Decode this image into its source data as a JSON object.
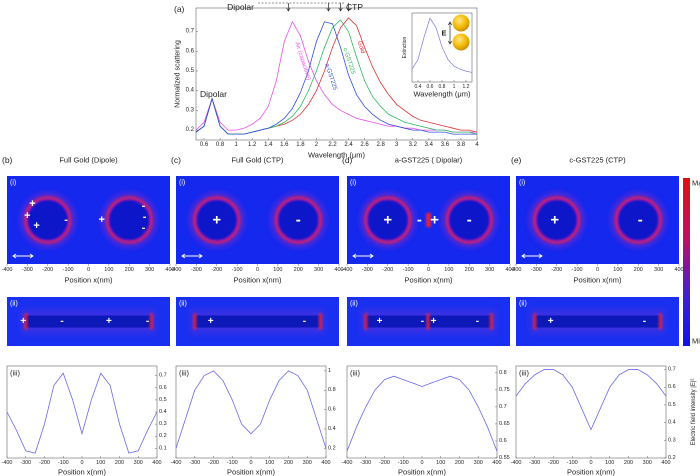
{
  "chart_data": [
    {
      "type": "line",
      "panel_label": "(a)",
      "x_label": "Wavelength (μm)",
      "y_label": "Normalized scattering",
      "x": [
        0.5,
        0.6,
        0.7,
        0.8,
        0.9,
        1.0,
        1.1,
        1.2,
        1.3,
        1.4,
        1.5,
        1.6,
        1.7,
        1.8,
        1.9,
        2.0,
        2.1,
        2.2,
        2.3,
        2.4,
        2.5,
        2.6,
        2.7,
        2.8,
        2.9,
        3.0,
        3.1,
        3.2,
        3.3,
        3.4,
        3.5,
        3.6,
        3.7,
        3.8,
        3.9,
        4.0
      ],
      "series": [
        {
          "name": "Air (capacitive)",
          "color": "#e854e8",
          "values": [
            0.2,
            0.24,
            0.36,
            0.24,
            0.2,
            0.2,
            0.21,
            0.23,
            0.26,
            0.32,
            0.45,
            0.65,
            0.75,
            0.68,
            0.55,
            0.45,
            0.38,
            0.33,
            0.3,
            0.28,
            0.26,
            0.25,
            0.24,
            0.23,
            0.22,
            0.22,
            0.21,
            0.21,
            0.2,
            0.2,
            0.2,
            0.2,
            0.19,
            0.19,
            0.19,
            0.19
          ]
        },
        {
          "name": "Gold",
          "color": "#e03030",
          "values": [
            0.19,
            0.22,
            0.36,
            0.22,
            0.18,
            0.18,
            0.18,
            0.19,
            0.2,
            0.21,
            0.22,
            0.23,
            0.25,
            0.28,
            0.33,
            0.4,
            0.5,
            0.62,
            0.72,
            0.77,
            0.73,
            0.62,
            0.52,
            0.44,
            0.38,
            0.33,
            0.3,
            0.27,
            0.25,
            0.24,
            0.23,
            0.22,
            0.21,
            0.2,
            0.2,
            0.19
          ]
        },
        {
          "name": "c-GST225",
          "color": "#30b860",
          "values": [
            0.19,
            0.22,
            0.36,
            0.22,
            0.18,
            0.18,
            0.18,
            0.19,
            0.2,
            0.21,
            0.22,
            0.24,
            0.27,
            0.32,
            0.4,
            0.5,
            0.62,
            0.72,
            0.76,
            0.7,
            0.57,
            0.45,
            0.37,
            0.32,
            0.28,
            0.26,
            0.24,
            0.23,
            0.22,
            0.21,
            0.2,
            0.2,
            0.19,
            0.19,
            0.19,
            0.18
          ]
        },
        {
          "name": "a-GST225",
          "color": "#3050e0",
          "values": [
            0.19,
            0.22,
            0.36,
            0.22,
            0.18,
            0.18,
            0.18,
            0.19,
            0.2,
            0.21,
            0.23,
            0.26,
            0.31,
            0.39,
            0.5,
            0.65,
            0.75,
            0.74,
            0.62,
            0.48,
            0.38,
            0.32,
            0.28,
            0.25,
            0.23,
            0.22,
            0.21,
            0.2,
            0.2,
            0.19,
            0.19,
            0.19,
            0.18,
            0.18,
            0.18,
            0.18
          ]
        }
      ],
      "xlim": [
        0.5,
        4
      ],
      "xticks": [
        0.6,
        0.8,
        1,
        1.2,
        1.4,
        1.6,
        1.8,
        2,
        2.2,
        2.4,
        2.6,
        2.8,
        3,
        3.2,
        3.4,
        3.6,
        3.8,
        4
      ],
      "ylim": [
        0.15,
        0.82
      ],
      "yticks": [
        0.2,
        0.3,
        0.4,
        0.5,
        0.6,
        0.7
      ],
      "annotations": [
        "Dipolar",
        "CTP",
        "Dipolar"
      ]
    },
    {
      "type": "line",
      "x_label": "Wavelength (μm)",
      "y_label": "Extinction",
      "annotations": [
        "E"
      ],
      "x": [
        0.3,
        0.4,
        0.5,
        0.6,
        0.7,
        0.8,
        0.9,
        1.0,
        1.1,
        1.2,
        1.3
      ],
      "series": [
        {
          "color": "#7b7bdc",
          "values": [
            0.2,
            0.35,
            0.7,
            1.0,
            0.85,
            0.55,
            0.35,
            0.25,
            0.2,
            0.17,
            0.15
          ]
        }
      ],
      "xlim": [
        0.3,
        1.3
      ],
      "xticks": [
        0.4,
        0.6,
        0.8,
        1,
        1.2
      ],
      "ylim": [
        0,
        1.08
      ]
    },
    {
      "type": "line",
      "panel_label": "(iii)",
      "x_label": "Position x(nm)",
      "x": [
        -400,
        -350,
        -300,
        -250,
        -200,
        -150,
        -100,
        -50,
        0,
        50,
        100,
        150,
        200,
        250,
        300,
        350,
        400
      ],
      "series": [
        {
          "color": "#6a6ae8",
          "values": [
            0.4,
            0.25,
            0.08,
            0.06,
            0.3,
            0.62,
            0.72,
            0.5,
            0.22,
            0.5,
            0.72,
            0.62,
            0.3,
            0.06,
            0.08,
            0.25,
            0.4
          ]
        }
      ],
      "xlim": [
        -400,
        400
      ],
      "xticks": [
        -400,
        -300,
        -200,
        -100,
        0,
        100,
        200,
        300,
        400
      ],
      "ylim": [
        0.02,
        0.78
      ],
      "yticks": [
        0.1,
        0.2,
        0.3,
        0.4,
        0.5,
        0.6,
        0.7
      ]
    },
    {
      "type": "line",
      "panel_label": "(iii)",
      "x_label": "Position x(nm)",
      "x": [
        -400,
        -350,
        -300,
        -250,
        -200,
        -150,
        -100,
        -50,
        0,
        50,
        100,
        150,
        200,
        250,
        300,
        350,
        400
      ],
      "series": [
        {
          "color": "#6a6ae8",
          "values": [
            0.2,
            0.5,
            0.8,
            0.95,
            1.0,
            0.9,
            0.7,
            0.45,
            0.35,
            0.45,
            0.7,
            0.9,
            1.0,
            0.95,
            0.8,
            0.5,
            0.2
          ]
        }
      ],
      "xlim": [
        -400,
        400
      ],
      "xticks": [
        -400,
        -300,
        -200,
        -100,
        0,
        100,
        200,
        300,
        400
      ],
      "ylim": [
        0.1,
        1.05
      ],
      "yticks": [
        0.2,
        0.4,
        0.6,
        0.8,
        1
      ]
    },
    {
      "type": "line",
      "panel_label": "(iii)",
      "x_label": "Position x(nm)",
      "x": [
        -400,
        -350,
        -300,
        -250,
        -200,
        -150,
        -100,
        -50,
        0,
        50,
        100,
        150,
        200,
        250,
        300,
        350,
        400
      ],
      "series": [
        {
          "color": "#6a6ae8",
          "values": [
            0.57,
            0.64,
            0.7,
            0.75,
            0.78,
            0.79,
            0.78,
            0.77,
            0.76,
            0.77,
            0.78,
            0.79,
            0.78,
            0.75,
            0.7,
            0.64,
            0.57
          ]
        }
      ],
      "xlim": [
        -400,
        400
      ],
      "xticks": [
        -400,
        -300,
        -200,
        -100,
        0,
        100,
        200,
        300,
        400
      ],
      "ylim": [
        0.55,
        0.82
      ],
      "yticks": [
        0.55,
        0.6,
        0.65,
        0.7,
        0.75,
        0.8
      ]
    },
    {
      "type": "line",
      "panel_label": "(iii)",
      "x_label": "Position x(nm)",
      "y_label": "Electric field intensity |E|²",
      "x": [
        -400,
        -350,
        -300,
        -250,
        -200,
        -150,
        -100,
        -50,
        0,
        50,
        100,
        150,
        200,
        250,
        300,
        350,
        400
      ],
      "series": [
        {
          "color": "#6a6ae8",
          "values": [
            0.55,
            0.62,
            0.67,
            0.7,
            0.7,
            0.67,
            0.6,
            0.48,
            0.36,
            0.48,
            0.6,
            0.67,
            0.7,
            0.7,
            0.67,
            0.62,
            0.55
          ]
        }
      ],
      "xlim": [
        -400,
        400
      ],
      "xticks": [
        -400,
        -300,
        -200,
        -100,
        0,
        100,
        200,
        300,
        400
      ],
      "ylim": [
        0.2,
        0.72
      ],
      "yticks": [
        0.2,
        0.3,
        0.4,
        0.5,
        0.6,
        0.7
      ]
    }
  ],
  "panels": [
    {
      "label": "(b)",
      "title": "Full Gold (Dipole)",
      "x_label": "Position x(nm)",
      "xticks": [
        -400,
        -300,
        -200,
        -100,
        0,
        100,
        200,
        300,
        400
      ],
      "map_i": {
        "label": "(i)",
        "charges": [
          "+",
          "+",
          "+",
          "-",
          "+",
          "-",
          "-",
          "-"
        ]
      },
      "map_ii": {
        "label": "(ii)",
        "charges": [
          "+",
          "-",
          "+",
          "-"
        ]
      }
    },
    {
      "label": "(c)",
      "title": "Full Gold (CTP)",
      "x_label": "Position x(nm)",
      "xticks": [
        -400,
        -300,
        -200,
        -100,
        0,
        100,
        200,
        300,
        400
      ],
      "map_i": {
        "label": "(i)",
        "charges": [
          "+",
          "-"
        ]
      },
      "map_ii": {
        "label": "(ii)",
        "charges": [
          "+",
          "-"
        ]
      }
    },
    {
      "label": "(d)",
      "title": "a-GST225 ( Dipolar)",
      "x_label": "Position x(nm)",
      "xticks": [
        -400,
        -300,
        -200,
        -100,
        0,
        100,
        200,
        300,
        400
      ],
      "map_i": {
        "label": "(i)",
        "charges": [
          "+",
          "-",
          "+",
          "-"
        ]
      },
      "map_ii": {
        "label": "(ii)",
        "charges": [
          "+",
          "-",
          "+",
          "-"
        ]
      }
    },
    {
      "label": "(e)",
      "title": "c-GST225 (CTP)",
      "x_label": "Position x(nm)",
      "xticks": [
        -400,
        -300,
        -200,
        -100,
        0,
        100,
        200,
        300,
        400
      ],
      "map_i": {
        "label": "(i)",
        "charges": [
          "+",
          "-"
        ]
      },
      "map_ii": {
        "label": "(ii)",
        "charges": [
          "+",
          "-"
        ]
      }
    }
  ],
  "colorbar": {
    "max": "Max",
    "min": "Min"
  }
}
